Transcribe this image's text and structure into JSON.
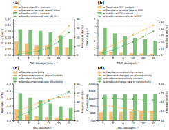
{
  "chart_data": [
    {
      "type": "bar",
      "title": "(a)",
      "x_label": "PAC dosage / mg·L⁻¹",
      "y_label": "UV₂₅₀/(cm⁻¹)",
      "y2_label": "Removal rate(%)",
      "categories": [
        "2",
        "5",
        "8",
        "10",
        "20",
        "30"
      ],
      "series": [
        {
          "name": "≪Qiandian≫UV₂₅₀ content",
          "type": "bar",
          "color": "#f5c07a",
          "values": [
            0.046,
            0.038,
            0.032,
            0.03,
            0.028,
            0.025
          ]
        },
        {
          "name": "≪Qiandian≫removal rate of UV₂₅₀",
          "type": "line",
          "axis": "y2",
          "color": "#f5a742",
          "marker": "circle",
          "line_style": "dashed",
          "values": [
            3,
            5,
            8,
            11,
            20,
            32
          ]
        },
        {
          "name": "≪Nandisu≫UV₂₅₀ content",
          "type": "bar",
          "color": "#7dbf7a",
          "values": [
            0.085,
            0.082,
            0.08,
            0.075,
            0.065,
            0.055
          ]
        },
        {
          "name": "≪Nandisu≫removal rate of UV₂₅₀",
          "type": "line",
          "axis": "y2",
          "color": "#5ab05a",
          "marker": "square",
          "line_style": "dashed",
          "values": [
            1,
            3,
            5,
            8,
            15,
            25
          ]
        }
      ],
      "ylim": [
        0,
        0.12
      ],
      "yticks": [
        {
          "value": 0,
          "label": "0.00"
        },
        0.02,
        0.04,
        0.06,
        0.08,
        {
          "value": 0.1,
          "label": "0.10"
        },
        0.12
      ],
      "y2lim": [
        0,
        40
      ],
      "y2ticks": [
        0,
        10,
        20,
        30,
        40
      ],
      "grid": true,
      "legend": "upper left"
    },
    {
      "type": "bar",
      "title": "(b)",
      "x_label": "PAC² dosage/L⁻¹",
      "y_label": "DOC / mg·L⁻¹",
      "y2_label": "Removal rate(%)",
      "categories": [
        "2",
        "5",
        "8",
        "10",
        "20",
        "30"
      ],
      "series": [
        {
          "name": "≪Qiandian≫DOC content",
          "type": "bar",
          "color": "#f5c07a",
          "values": [
            0.55,
            0.48,
            0.38,
            0.32,
            0.28,
            0.25
          ]
        },
        {
          "name": "≪Qiandian≫removal rate of DOC",
          "type": "line",
          "axis": "y2",
          "color": "#f5a742",
          "marker": "circle",
          "line_style": "dashed",
          "values": [
            8,
            15,
            22,
            30,
            38,
            45
          ]
        },
        {
          "name": "≪Nandisu≫DOC content",
          "type": "bar",
          "color": "#7dbf7a",
          "values": [
            3.8,
            3.0,
            2.6,
            2.4,
            2.2,
            2.0
          ]
        },
        {
          "name": "≪Nandisu≫removal rate of DOC",
          "type": "line",
          "axis": "y2",
          "color": "#5ab05a",
          "marker": "square",
          "line_style": "dashed",
          "values": [
            4,
            8,
            14,
            20,
            28,
            36
          ]
        }
      ],
      "ylim": [
        0,
        5.0
      ],
      "yticks": [
        0,
        1,
        2,
        3,
        4,
        5
      ],
      "y2lim": [
        0,
        55
      ],
      "y2ticks": [
        0,
        10,
        20,
        30,
        40,
        50
      ],
      "grid": true,
      "legend": "upper left"
    },
    {
      "type": "bar",
      "title": "(c)",
      "x_label": "PAC dosage/L⁻¹",
      "y_label": "Turbidity / (NTU)",
      "y2_label": "Removal rate(%)",
      "categories": [
        "2",
        "5",
        "8",
        "10",
        "20",
        "30"
      ],
      "series": [
        {
          "name": "≪Qiandian≫turbidity",
          "type": "bar",
          "color": "#f5c07a",
          "values": [
            0.75,
            0.38,
            0.28,
            0.22,
            0.2,
            0.18
          ]
        },
        {
          "name": "≪Qiandian≫removal rate of turbidity",
          "type": "line",
          "axis": "y2",
          "color": "#f5a742",
          "marker": "circle",
          "line_style": "dashed",
          "values": [
            20,
            30,
            38,
            45,
            50,
            52
          ]
        },
        {
          "name": "≪Nandisu≫turbidity",
          "type": "bar",
          "color": "#7dbf7a",
          "values": [
            1.85,
            1.55,
            1.35,
            1.15,
            0.95,
            0.85
          ]
        },
        {
          "name": "≪Nandisu≫removal rate of turbidity",
          "type": "line",
          "axis": "y2",
          "color": "#5ab05a",
          "marker": "square",
          "line_style": "dashed",
          "values": [
            8,
            18,
            30,
            42,
            52,
            62
          ]
        }
      ],
      "ylim": [
        0,
        2.5
      ],
      "yticks": [
        {
          "value": 0,
          "label": "0.0"
        },
        0.5,
        {
          "value": 1.0,
          "label": "1.0"
        },
        1.5,
        {
          "value": 2.0,
          "label": "2.0"
        },
        2.5
      ],
      "y2lim": [
        0,
        80
      ],
      "y2ticks": [
        0,
        20,
        40,
        60,
        80
      ],
      "grid": true,
      "legend": "upper left"
    },
    {
      "type": "bar",
      "title": "(d)",
      "x_label": "PAC dosage/L⁻¹",
      "y_label": "Conductivity",
      "y2_label": "Change rate(%)",
      "categories": [
        "2",
        "5",
        "8",
        "10",
        "20",
        "30"
      ],
      "series": [
        {
          "name": "≪Qiandian≫conductivity content",
          "type": "bar",
          "color": "#f5c07a",
          "values": [
            810,
            815,
            815,
            820,
            820,
            825
          ]
        },
        {
          "name": "≪Qiandian≫change rate of conductivity",
          "type": "line",
          "axis": "y2",
          "color": "#f5a742",
          "marker": "circle",
          "line_style": "dashed",
          "values": [
            18.5,
            17.5,
            16.5,
            15.5,
            15.0,
            14.5
          ]
        },
        {
          "name": "≪Nandisu≫conductivity content",
          "type": "bar",
          "color": "#7dbf7a",
          "values": [
            1050,
            1055,
            1060,
            1060,
            1065,
            1065
          ]
        },
        {
          "name": "≪Nandisu≫change rate of conductivity",
          "type": "line",
          "axis": "y2",
          "color": "#5ab05a",
          "marker": "square",
          "line_style": "dashed",
          "values": [
            22.0,
            22.0,
            21.5,
            21.5,
            21.0,
            21.0
          ]
        }
      ],
      "ylim": [
        700,
        1200
      ],
      "yticks": [
        700,
        800,
        900,
        1000,
        1100,
        1200
      ],
      "y2lim": [
        10,
        30
      ],
      "y2ticks": [
        10,
        15,
        20,
        25,
        30
      ],
      "grid": true,
      "legend": "upper left"
    }
  ]
}
